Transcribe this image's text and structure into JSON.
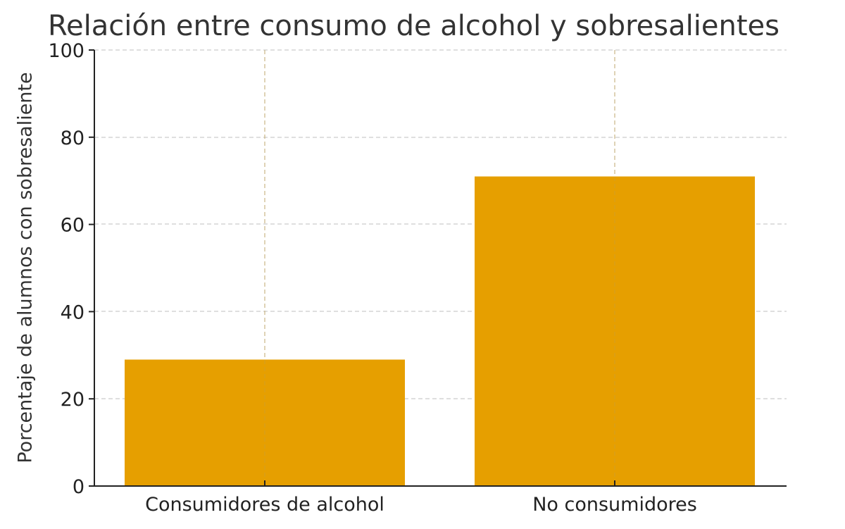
{
  "chart_data": {
    "type": "bar",
    "title": "Relación entre consumo de alcohol y sobresalientes",
    "xlabel": "",
    "ylabel": "Porcentaje de alumnos con sobresaliente",
    "categories": [
      "Consumidores de alcohol",
      "No consumidores"
    ],
    "values": [
      29,
      71
    ],
    "ylim": [
      0,
      100
    ],
    "yticks": [
      "0",
      "20",
      "40",
      "60",
      "80",
      "100"
    ],
    "grid": true,
    "bar_color": "#E69F00"
  }
}
